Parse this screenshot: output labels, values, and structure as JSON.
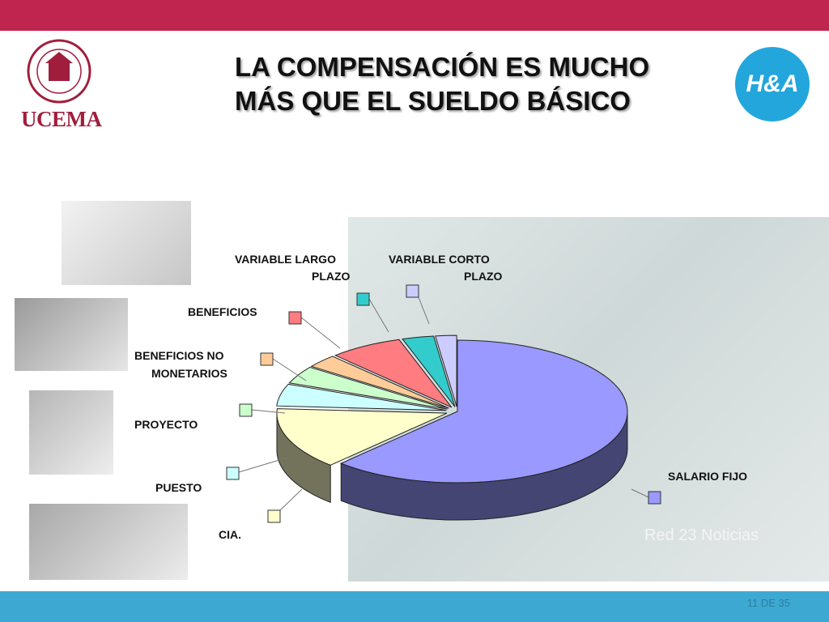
{
  "header": {
    "title_line1": "LA COMPENSACIÓN ES MUCHO",
    "title_line2": "MÁS QUE EL SUELDO BÁSICO",
    "logo_left_text": "UCEMA",
    "logo_right_text": "H&A"
  },
  "footer": {
    "page_text": "11 DE 35",
    "watermark": "Red 23 Noticias"
  },
  "colors": {
    "top_band": "#c0254f",
    "bottom_band": "#3da9d3"
  },
  "chart_data": {
    "type": "pie",
    "title": "",
    "slices": [
      {
        "label": "SALARIO FIJO",
        "value": 62,
        "color": "#9999ff"
      },
      {
        "label": "CIA.",
        "value": 14,
        "color": "#ffffcc"
      },
      {
        "label": "PUESTO",
        "value": 5,
        "color": "#ccffff"
      },
      {
        "label": "PROYECTO",
        "value": 4,
        "color": "#ccffcc"
      },
      {
        "label": "BENEFICIOS NO MONETARIOS",
        "value": 3,
        "color": "#ffcc99"
      },
      {
        "label": "BENEFICIOS",
        "value": 7,
        "color": "#ff7c80"
      },
      {
        "label": "VARIABLE LARGO PLAZO",
        "value": 3,
        "color": "#33cccc"
      },
      {
        "label": "VARIABLE CORTO PLAZO",
        "value": 2,
        "color": "#ccccff"
      }
    ],
    "legend_labels": {
      "salario": "SALARIO FIJO",
      "cia": "CIA.",
      "puesto": "PUESTO",
      "proyecto": "PROYECTO",
      "bnm_1": "BENEFICIOS NO",
      "bnm_2": "MONETARIOS",
      "beneficios": "BENEFICIOS",
      "vlp_1": "VARIABLE LARGO",
      "vlp_2": "PLAZO",
      "vcp_1": "VARIABLE CORTO",
      "vcp_2": "PLAZO"
    }
  }
}
